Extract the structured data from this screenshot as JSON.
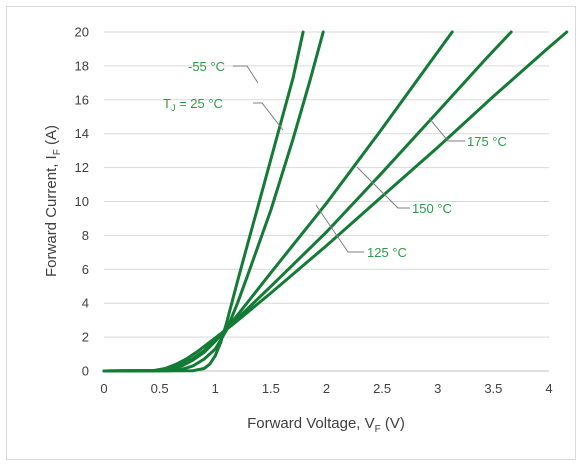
{
  "chart_data": {
    "type": "line",
    "xlabel": {
      "main": "Forward Voltage, V",
      "sub": "F",
      "unit": " (V)"
    },
    "ylabel": {
      "main": "Forward Current, I",
      "sub": "F",
      "unit": " (A)"
    },
    "xlim": [
      0,
      4
    ],
    "ylim": [
      0,
      20
    ],
    "xticks": [
      "0",
      "0.5",
      "1",
      "1.5",
      "2",
      "2.5",
      "3",
      "3.5",
      "4"
    ],
    "yticks": [
      "0",
      "2",
      "4",
      "6",
      "8",
      "10",
      "12",
      "14",
      "16",
      "18",
      "20"
    ],
    "grid": "horizontal",
    "line_color": "#137b35",
    "label_color": "#2e9b48",
    "series": [
      {
        "name": "-55 °C",
        "points": [
          [
            0,
            0
          ],
          [
            0.8,
            0.02
          ],
          [
            0.9,
            0.15
          ],
          [
            0.95,
            0.4
          ],
          [
            1.0,
            0.9
          ],
          [
            1.05,
            1.7
          ],
          [
            1.1,
            2.8
          ],
          [
            1.2,
            5.3
          ],
          [
            1.3,
            7.7
          ],
          [
            1.4,
            10.1
          ],
          [
            1.5,
            12.5
          ],
          [
            1.6,
            14.9
          ],
          [
            1.7,
            17.3
          ],
          [
            1.79,
            20
          ]
        ]
      },
      {
        "name": "25 °C",
        "points": [
          [
            0,
            0
          ],
          [
            0.6,
            0.02
          ],
          [
            0.7,
            0.1
          ],
          [
            0.8,
            0.3
          ],
          [
            0.9,
            0.7
          ],
          [
            1.0,
            1.3
          ],
          [
            1.1,
            2.4
          ],
          [
            1.2,
            4.0
          ],
          [
            1.3,
            5.8
          ],
          [
            1.5,
            9.5
          ],
          [
            1.7,
            13.7
          ],
          [
            1.85,
            17.1
          ],
          [
            1.97,
            20
          ]
        ]
      },
      {
        "name": "125 °C",
        "points": [
          [
            0,
            0
          ],
          [
            0.5,
            0.02
          ],
          [
            0.6,
            0.1
          ],
          [
            0.7,
            0.3
          ],
          [
            0.8,
            0.65
          ],
          [
            0.9,
            1.1
          ],
          [
            1.0,
            1.75
          ],
          [
            1.1,
            2.5
          ],
          [
            1.2,
            3.3
          ],
          [
            1.5,
            5.8
          ],
          [
            2.0,
            9.9
          ],
          [
            2.5,
            14.3
          ],
          [
            2.93,
            18.2
          ],
          [
            3.13,
            20
          ]
        ]
      },
      {
        "name": "150 °C",
        "points": [
          [
            0,
            0
          ],
          [
            0.5,
            0.03
          ],
          [
            0.6,
            0.15
          ],
          [
            0.7,
            0.4
          ],
          [
            0.8,
            0.75
          ],
          [
            0.9,
            1.2
          ],
          [
            1.0,
            1.85
          ],
          [
            1.1,
            2.5
          ],
          [
            1.2,
            3.1
          ],
          [
            1.5,
            5.0
          ],
          [
            2.0,
            8.2
          ],
          [
            2.5,
            11.7
          ],
          [
            3.0,
            15.3
          ],
          [
            3.43,
            18.4
          ],
          [
            3.66,
            20
          ]
        ]
      },
      {
        "name": "175 °C",
        "points": [
          [
            0,
            0
          ],
          [
            0.45,
            0.03
          ],
          [
            0.55,
            0.15
          ],
          [
            0.65,
            0.4
          ],
          [
            0.75,
            0.75
          ],
          [
            0.85,
            1.2
          ],
          [
            0.95,
            1.7
          ],
          [
            1.05,
            2.2
          ],
          [
            1.15,
            2.7
          ],
          [
            1.5,
            4.6
          ],
          [
            2.0,
            7.4
          ],
          [
            2.5,
            10.3
          ],
          [
            3.0,
            13.2
          ],
          [
            3.5,
            16.2
          ],
          [
            4.0,
            19.1
          ],
          [
            4.16,
            20
          ]
        ]
      }
    ],
    "annotations": {
      "m55": "-55 °C",
      "tj_prefix": "T",
      "tj_sub": "J",
      "tj_suffix": " = 25 °C",
      "t125": "125 °C",
      "t150": "150 °C",
      "t175": "175 °C"
    }
  }
}
